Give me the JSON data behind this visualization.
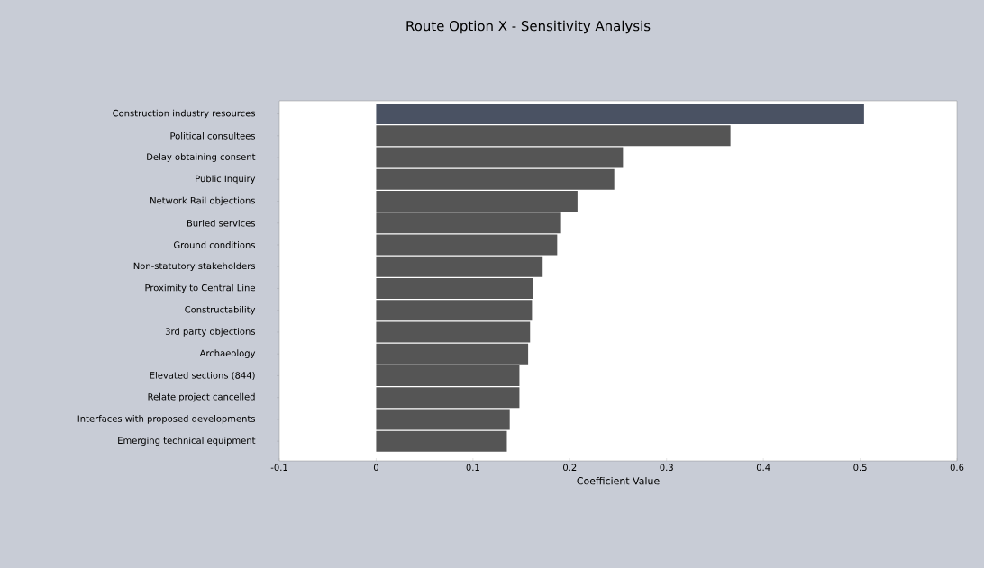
{
  "chart_data": {
    "type": "bar",
    "orientation": "horizontal",
    "title": "Route Option X - Sensitivity Analysis",
    "xlabel": "Coefficient Value",
    "categories": [
      "Construction industry resources",
      "Political consultees",
      "Delay obtaining consent",
      "Public Inquiry",
      "Network Rail objections",
      "Buried services",
      "Ground conditions",
      "Non-statutory stakeholders",
      "Proximity to Central Line",
      "Constructability",
      "3rd party objections",
      "Archaeology",
      "Elevated sections (844)",
      "Relate project cancelled",
      "Interfaces with proposed developments",
      "Emerging technical equipment"
    ],
    "values": [
      0.504,
      0.366,
      0.255,
      0.246,
      0.208,
      0.191,
      0.187,
      0.172,
      0.162,
      0.161,
      0.159,
      0.157,
      0.148,
      0.148,
      0.138,
      0.135
    ],
    "colors": [
      "#4a5263",
      "#555555",
      "#555555",
      "#555555",
      "#555555",
      "#555555",
      "#555555",
      "#555555",
      "#555555",
      "#555555",
      "#555555",
      "#555555",
      "#555555",
      "#555555",
      "#555555",
      "#555555"
    ],
    "xlim": [
      -0.1,
      0.6
    ],
    "xticks": [
      -0.1,
      0,
      0.1,
      0.2,
      0.3,
      0.4,
      0.5,
      0.6
    ],
    "grid": false
  }
}
